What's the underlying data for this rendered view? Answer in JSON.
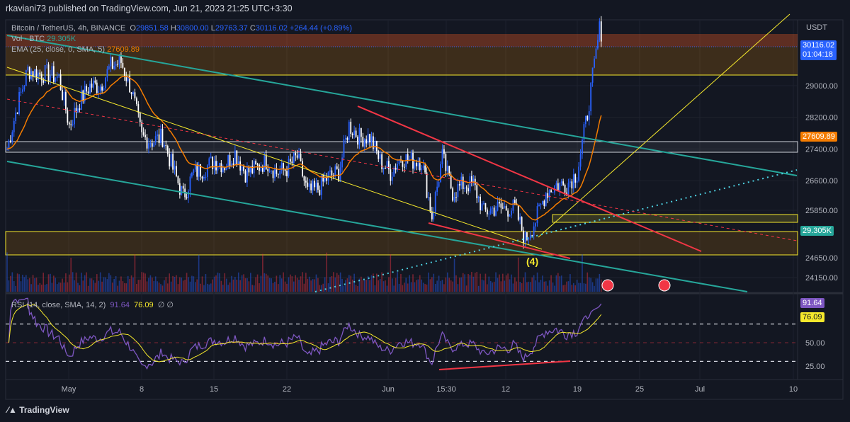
{
  "header": {
    "published": "rkaviani73 published on TradingView.com, Jun 21, 2023 21:25 UTC+3:30"
  },
  "legend": {
    "symbol": "Bitcoin / TetherUS, 4h, BINANCE",
    "o_label": "O",
    "o": "29851.58",
    "h_label": "H",
    "h": "30800.00",
    "l_label": "L",
    "l": "29763.37",
    "c_label": "C",
    "c": "30116.02",
    "change": "+264.44 (+0.89%)",
    "vol_label": "Vol · BTC",
    "vol": "29.305K",
    "ema_label": "EMA (25, close, 0, SMA, 5)",
    "ema": "27609.89",
    "rsi_label": "RSI (14, close, SMA, 14, 2)",
    "rsi": "91.64",
    "rsi_ma": "76.09",
    "rsi_extra": "∅ ∅"
  },
  "price_axis": {
    "currency": "USDT",
    "last_price": "30116.02",
    "countdown": "01:04:18",
    "ema_tag": "27609.89",
    "vol_tag": "29.305K",
    "rsi_tag": "91.64",
    "rsi_ma_tag": "76.09"
  },
  "annotation": "(4)",
  "footer": {
    "brand": "TradingView"
  },
  "colors": {
    "up": "#2962ff",
    "down": "#ffffff",
    "ema": "#f57c00",
    "rsi": "#7e57c2",
    "rsi_ma": "#f5e82c",
    "teal": "#26a69a"
  },
  "chart_data": {
    "type": "candlestick",
    "title": "Bitcoin / TetherUS, 4h, BINANCE",
    "ylabel": "USDT",
    "y_ticks": [
      29000,
      28200,
      27400,
      26600,
      25850,
      24650,
      24150
    ],
    "x_ticks": [
      "May",
      "8",
      "15",
      "22",
      "Jun",
      "15:30",
      "12",
      "19",
      "25",
      "Jul",
      "10"
    ],
    "rsi_ticks": [
      50,
      25
    ],
    "daily_close": [
      [
        "Apr 25",
        27400
      ],
      [
        "Apr 26",
        28500
      ],
      [
        "Apr 27",
        29400
      ],
      [
        "Apr 28",
        29300
      ],
      [
        "Apr 29",
        29300
      ],
      [
        "Apr 30",
        29200
      ],
      [
        "May 1",
        28000
      ],
      [
        "May 2",
        28600
      ],
      [
        "May 3",
        29000
      ],
      [
        "May 4",
        29000
      ],
      [
        "May 5",
        29500
      ],
      [
        "May 6",
        29600
      ],
      [
        "May 7",
        28900
      ],
      [
        "May 8",
        27700
      ],
      [
        "May 9",
        27600
      ],
      [
        "May 10",
        27700
      ],
      [
        "May 11",
        26900
      ],
      [
        "May 12",
        26200
      ],
      [
        "May 13",
        26800
      ],
      [
        "May 14",
        26900
      ],
      [
        "May 15",
        27100
      ],
      [
        "May 16",
        27000
      ],
      [
        "May 17",
        27300
      ],
      [
        "May 18",
        26800
      ],
      [
        "May 19",
        26900
      ],
      [
        "May 20",
        27100
      ],
      [
        "May 21",
        26800
      ],
      [
        "May 22",
        26900
      ],
      [
        "May 23",
        27200
      ],
      [
        "May 24",
        26300
      ],
      [
        "May 25",
        26400
      ],
      [
        "May 26",
        26700
      ],
      [
        "May 27",
        26800
      ],
      [
        "May 28",
        28000
      ],
      [
        "May 29",
        27700
      ],
      [
        "May 30",
        27700
      ],
      [
        "May 31",
        27100
      ],
      [
        "Jun 1",
        26800
      ],
      [
        "Jun 2",
        27200
      ],
      [
        "Jun 3",
        27100
      ],
      [
        "Jun 4",
        27100
      ],
      [
        "Jun 5",
        25700
      ],
      [
        "Jun 6",
        27200
      ],
      [
        "Jun 7",
        26300
      ],
      [
        "Jun 8",
        26500
      ],
      [
        "Jun 9",
        26500
      ],
      [
        "Jun 10",
        25800
      ],
      [
        "Jun 11",
        25900
      ],
      [
        "Jun 12",
        25900
      ],
      [
        "Jun 13",
        25900
      ],
      [
        "Jun 14",
        25100
      ],
      [
        "Jun 15",
        25600
      ],
      [
        "Jun 16",
        26300
      ],
      [
        "Jun 17",
        26500
      ],
      [
        "Jun 18",
        26500
      ],
      [
        "Jun 19",
        26800
      ],
      [
        "Jun 20",
        28300
      ],
      [
        "Jun 21",
        30116
      ]
    ]
  }
}
